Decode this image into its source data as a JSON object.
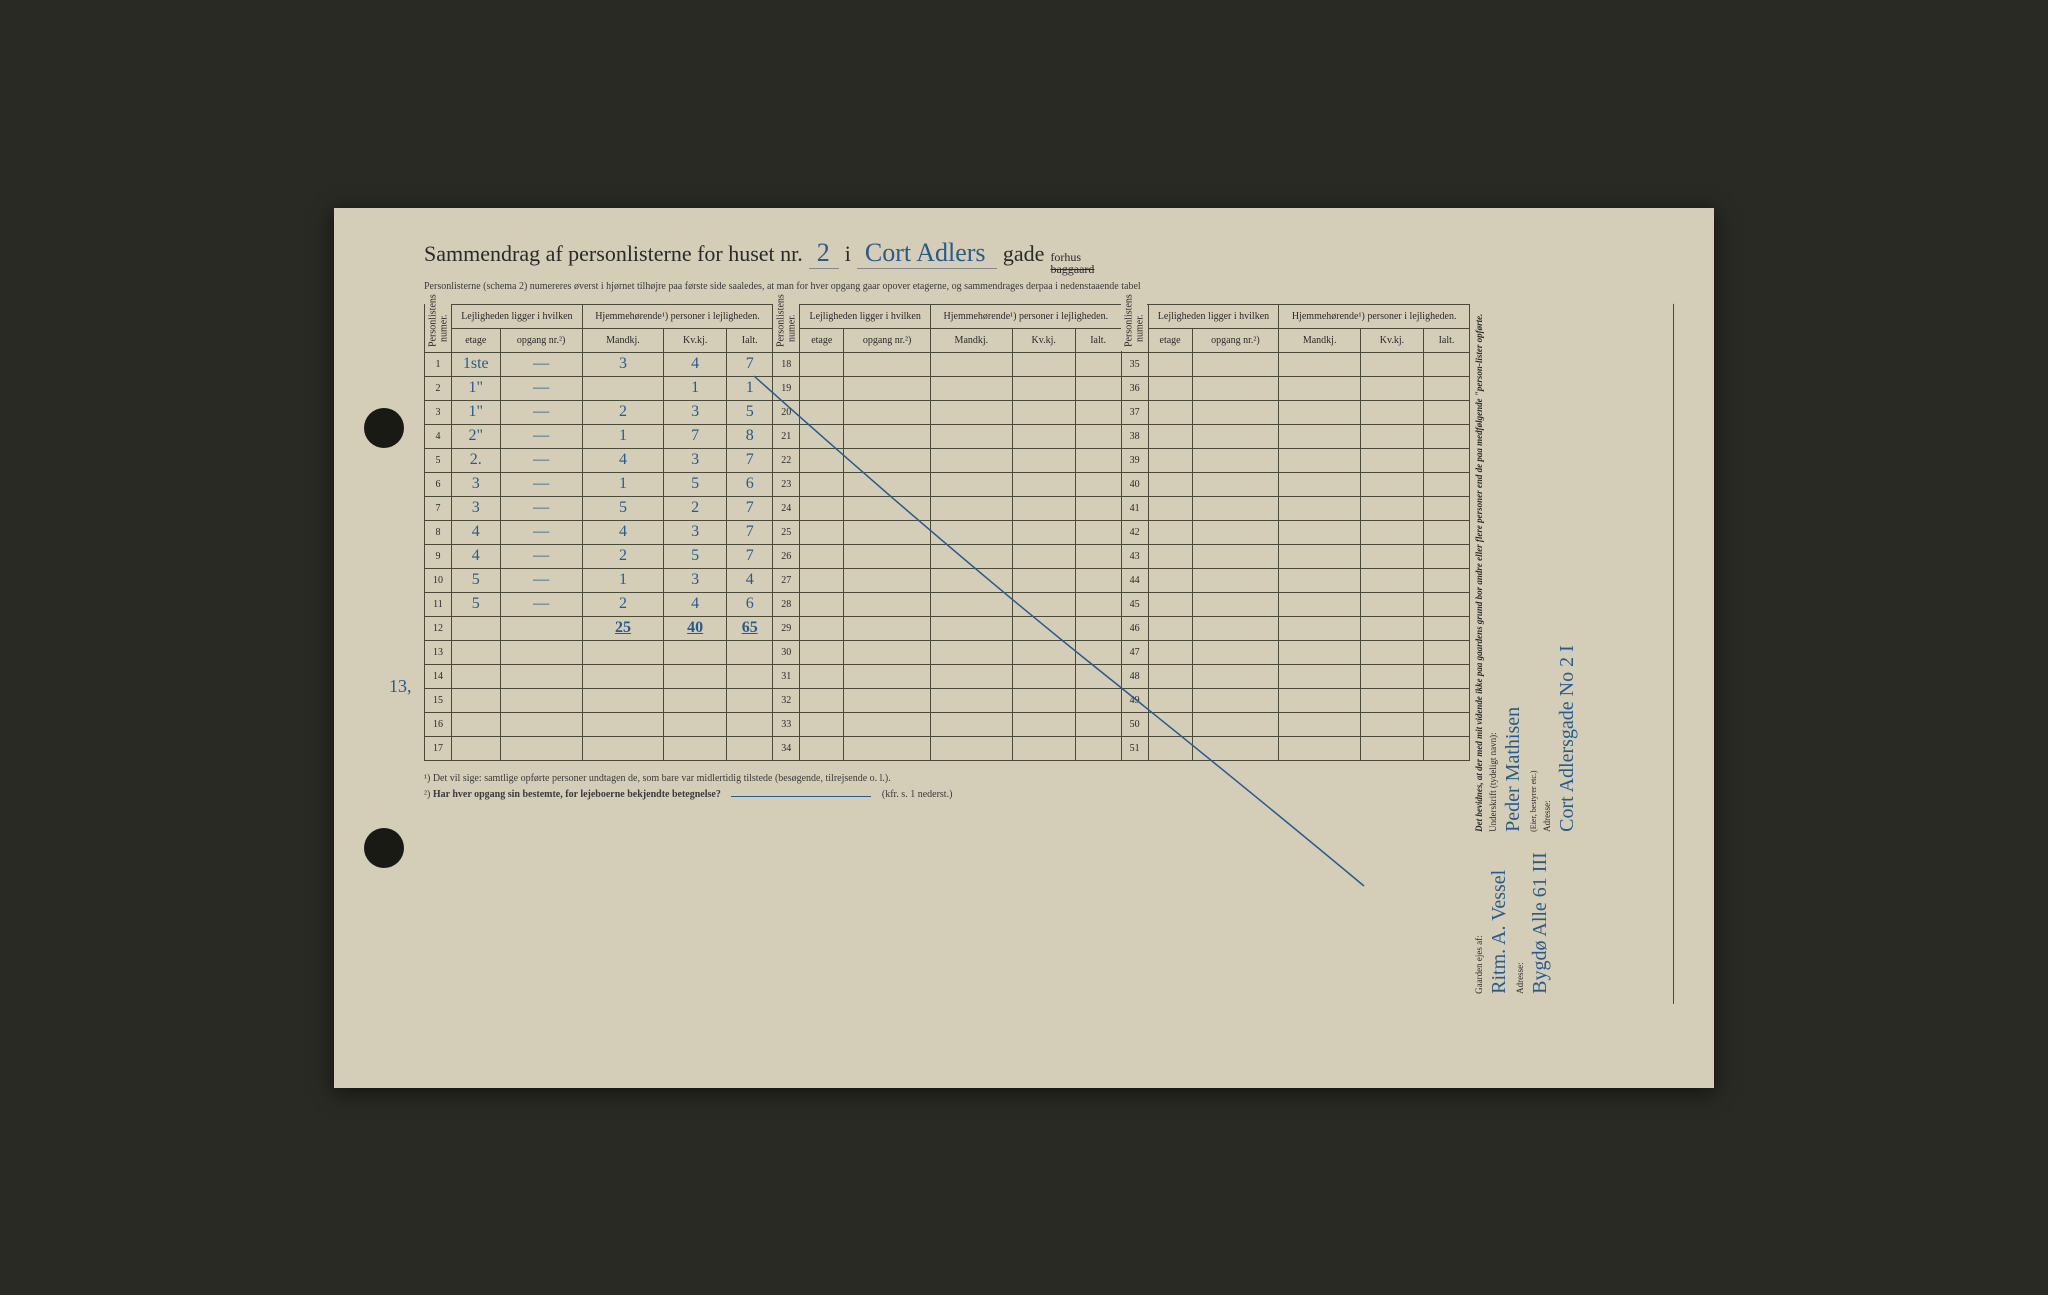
{
  "title": {
    "prefix": "Sammendrag af personlisterne for huset nr.",
    "house_nr": "2",
    "in": "i",
    "street": "Cort Adlers",
    "gade": "gade",
    "forhus": "forhus",
    "baggaard": "baggaard"
  },
  "subtitle": "Personlisterne (schema 2) numereres øverst i hjørnet tilhøjre paa første side saaledes, at man for hver opgang gaar opover etagerne, og sammendrages derpaa i nedenstaaende tabel",
  "headers": {
    "personlistens_numer": "Personlistens numer.",
    "lejligheden": "Lejligheden ligger i hvilken",
    "hjemmehorende": "Hjemmehørende¹) personer i lejligheden.",
    "etage": "etage",
    "opgang": "opgang nr.²)",
    "mandkj": "Mandkj.",
    "kvkj": "Kv.kj.",
    "ialt": "Ialt."
  },
  "rows": [
    {
      "n": "1",
      "etage": "1ste",
      "opgang": "—",
      "m": "3",
      "k": "4",
      "i": "7"
    },
    {
      "n": "2",
      "etage": "1\"",
      "opgang": "—",
      "m": "",
      "k": "1",
      "i": "1"
    },
    {
      "n": "3",
      "etage": "1\"",
      "opgang": "—",
      "m": "2",
      "k": "3",
      "i": "5"
    },
    {
      "n": "4",
      "etage": "2\"",
      "opgang": "—",
      "m": "1",
      "k": "7",
      "i": "8"
    },
    {
      "n": "5",
      "etage": "2.",
      "opgang": "—",
      "m": "4",
      "k": "3",
      "i": "7"
    },
    {
      "n": "6",
      "etage": "3",
      "opgang": "—",
      "m": "1",
      "k": "5",
      "i": "6"
    },
    {
      "n": "7",
      "etage": "3",
      "opgang": "—",
      "m": "5",
      "k": "2",
      "i": "7"
    },
    {
      "n": "8",
      "etage": "4",
      "opgang": "—",
      "m": "4",
      "k": "3",
      "i": "7"
    },
    {
      "n": "9",
      "etage": "4",
      "opgang": "—",
      "m": "2",
      "k": "5",
      "i": "7"
    },
    {
      "n": "10",
      "etage": "5",
      "opgang": "—",
      "m": "1",
      "k": "3",
      "i": "4"
    },
    {
      "n": "11",
      "etage": "5",
      "opgang": "—",
      "m": "2",
      "k": "4",
      "i": "6"
    }
  ],
  "totals": {
    "n": "12",
    "m": "25",
    "k": "40",
    "i": "65"
  },
  "blank_rows_1": [
    "13",
    "14",
    "15",
    "16",
    "17"
  ],
  "col2_nums": [
    "18",
    "19",
    "20",
    "21",
    "22",
    "23",
    "24",
    "25",
    "26",
    "27",
    "28",
    "29",
    "30",
    "31",
    "32",
    "33",
    "34"
  ],
  "col3_nums": [
    "35",
    "36",
    "37",
    "38",
    "39",
    "40",
    "41",
    "42",
    "43",
    "44",
    "45",
    "46",
    "47",
    "48",
    "49",
    "50",
    "51"
  ],
  "margin_note": "13,",
  "footnotes": {
    "f1": "¹) Det vil sige: samtlige opførte personer undtagen de, som bare var midlertidig tilstede (besøgende, tilrejsende o. l.).",
    "f2_label": "²)",
    "f2": "Har hver opgang sin bestemte, for lejeboerne bekjendte betegnelse?",
    "f2_ref": "(kfr. s. 1 nederst.)"
  },
  "side": {
    "gaarden_ejes": "Gaarden ejes af:",
    "owner": "Ritm. A. Vessel",
    "adresse_label": "Adresse:",
    "owner_addr": "Bygdø Alle 61 III",
    "bevidnes": "Det bevidnes, at der med mit vidende ikke paa gaardens grund bor andre eller flere personer end de paa medfølgende \"person-lister opførte.",
    "underskrift_label": "Underskrift (tydeligt navn):",
    "eier_bestyrer": "(Eier, bestyrer etc.)",
    "sign_name": "Peder Mathisen",
    "sign_addr": "Cort Adlersgade No 2 I"
  },
  "colors": {
    "paper": "#d4cdb8",
    "ink_print": "#2a2a2a",
    "ink_hw": "#2a5a8a",
    "border": "#4a4a3a",
    "bg": "#2a2a24"
  }
}
